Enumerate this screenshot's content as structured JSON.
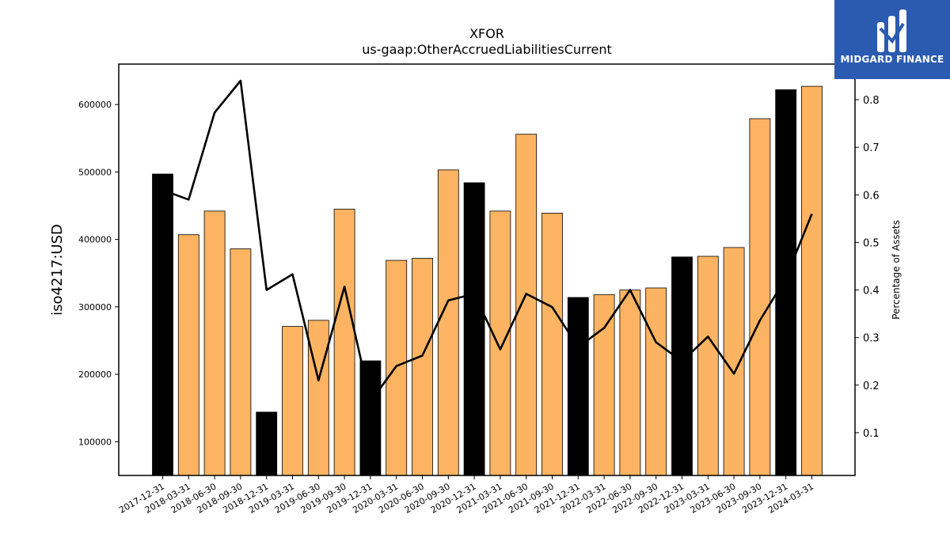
{
  "chart_data": {
    "type": "bar",
    "title": "XFOR",
    "subtitle": "us-gaap:OtherAccruedLiabilitiesCurrent",
    "ylabel": "iso4217:USD",
    "y2label": "Percentage of Assets",
    "ylim": [
      50000,
      660000
    ],
    "y2lim": [
      0.01,
      0.875
    ],
    "yticks": [
      100000,
      200000,
      300000,
      400000,
      500000,
      600000
    ],
    "y2ticks": [
      0.1,
      0.2,
      0.3,
      0.4,
      0.5,
      0.6,
      0.7,
      0.8
    ],
    "categories": [
      "2017-12-31",
      "2018-03-31",
      "2018-06-30",
      "2018-09-30",
      "2018-12-31",
      "2019-03-31",
      "2019-06-30",
      "2019-09-30",
      "2019-12-31",
      "2020-03-31",
      "2020-06-30",
      "2020-09-30",
      "2020-12-31",
      "2021-03-31",
      "2021-06-30",
      "2021-09-30",
      "2021-12-31",
      "2022-03-31",
      "2022-06-30",
      "2022-09-30",
      "2022-12-31",
      "2023-03-31",
      "2023-06-30",
      "2023-09-30",
      "2023-12-31",
      "2024-03-31"
    ],
    "values": [
      497000,
      407000,
      442000,
      386000,
      144000,
      271000,
      280000,
      445000,
      220000,
      369000,
      372000,
      503000,
      484000,
      442000,
      556000,
      439000,
      314000,
      318000,
      325000,
      328000,
      374000,
      375000,
      388000,
      579000,
      622000,
      627000
    ],
    "annual": [
      true,
      false,
      false,
      false,
      true,
      false,
      false,
      false,
      true,
      false,
      false,
      false,
      true,
      false,
      false,
      false,
      true,
      false,
      false,
      false,
      true,
      false,
      false,
      false,
      true,
      false
    ],
    "line_values": [
      0.61,
      0.59,
      0.773,
      0.84,
      0.4,
      0.433,
      0.21,
      0.407,
      0.165,
      0.24,
      0.262,
      0.378,
      0.392,
      0.275,
      0.392,
      0.364,
      0.28,
      0.32,
      0.4,
      0.29,
      0.25,
      0.302,
      0.224,
      0.336,
      0.425,
      0.56
    ],
    "colors": {
      "annual_bar": "#000000",
      "quarter_bar": "#fdb462",
      "line": "#000000",
      "axis": "#000000"
    },
    "grid": false,
    "legend": "none"
  },
  "logo": {
    "text": "MIDGARD FINANCE",
    "background": "#2b5bb1",
    "icon": "midgard-logo-icon"
  }
}
